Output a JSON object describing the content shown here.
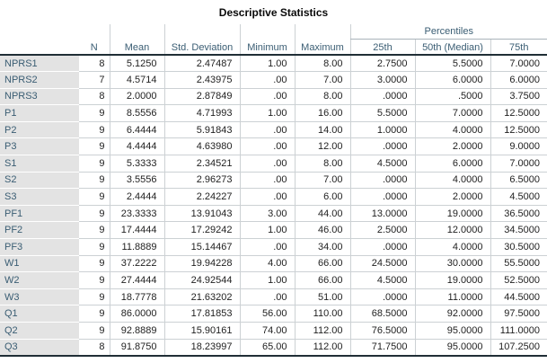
{
  "chart_data": {
    "type": "table",
    "title": "Descriptive Statistics",
    "column_groups": [
      {
        "label": "Percentiles",
        "spans_columns": [
          "25th",
          "50th (Median)",
          "75th"
        ]
      }
    ],
    "columns": [
      "N",
      "Mean",
      "Std. Deviation",
      "Minimum",
      "Maximum",
      "25th",
      "50th (Median)",
      "75th"
    ],
    "rows": [
      {
        "label": "NPRS1",
        "values": [
          "8",
          "5.1250",
          "2.47487",
          "1.00",
          "8.00",
          "2.7500",
          "5.5000",
          "7.0000"
        ]
      },
      {
        "label": "NPRS2",
        "values": [
          "7",
          "4.5714",
          "2.43975",
          ".00",
          "7.00",
          "3.0000",
          "6.0000",
          "6.0000"
        ]
      },
      {
        "label": "NPRS3",
        "values": [
          "8",
          "2.0000",
          "2.87849",
          ".00",
          "8.00",
          ".0000",
          ".5000",
          "3.7500"
        ]
      },
      {
        "label": "P1",
        "values": [
          "9",
          "8.5556",
          "4.71993",
          "1.00",
          "16.00",
          "5.5000",
          "7.0000",
          "12.5000"
        ]
      },
      {
        "label": "P2",
        "values": [
          "9",
          "6.4444",
          "5.91843",
          ".00",
          "14.00",
          "1.0000",
          "4.0000",
          "12.5000"
        ]
      },
      {
        "label": "P3",
        "values": [
          "9",
          "4.4444",
          "4.63980",
          ".00",
          "12.00",
          ".0000",
          "2.0000",
          "9.0000"
        ]
      },
      {
        "label": "S1",
        "values": [
          "9",
          "5.3333",
          "2.34521",
          ".00",
          "8.00",
          "4.5000",
          "6.0000",
          "7.0000"
        ]
      },
      {
        "label": "S2",
        "values": [
          "9",
          "3.5556",
          "2.96273",
          ".00",
          "7.00",
          ".0000",
          "4.0000",
          "6.5000"
        ]
      },
      {
        "label": "S3",
        "values": [
          "9",
          "2.4444",
          "2.24227",
          ".00",
          "6.00",
          ".0000",
          "2.0000",
          "4.5000"
        ]
      },
      {
        "label": "PF1",
        "values": [
          "9",
          "23.3333",
          "13.91043",
          "3.00",
          "44.00",
          "13.0000",
          "19.0000",
          "36.5000"
        ]
      },
      {
        "label": "PF2",
        "values": [
          "9",
          "17.4444",
          "17.29242",
          "1.00",
          "46.00",
          "2.5000",
          "12.0000",
          "34.5000"
        ]
      },
      {
        "label": "PF3",
        "values": [
          "9",
          "11.8889",
          "15.14467",
          ".00",
          "34.00",
          ".0000",
          "4.0000",
          "30.5000"
        ]
      },
      {
        "label": "W1",
        "values": [
          "9",
          "37.2222",
          "19.94228",
          "4.00",
          "66.00",
          "24.5000",
          "30.0000",
          "55.5000"
        ]
      },
      {
        "label": "W2",
        "values": [
          "9",
          "27.4444",
          "24.92544",
          "1.00",
          "66.00",
          "4.5000",
          "19.0000",
          "52.5000"
        ]
      },
      {
        "label": "W3",
        "values": [
          "9",
          "18.7778",
          "21.63202",
          ".00",
          "51.00",
          ".0000",
          "11.0000",
          "44.5000"
        ]
      },
      {
        "label": "Q1",
        "values": [
          "9",
          "86.0000",
          "17.81853",
          "56.00",
          "110.00",
          "68.5000",
          "92.0000",
          "97.5000"
        ]
      },
      {
        "label": "Q2",
        "values": [
          "9",
          "92.8889",
          "15.90161",
          "74.00",
          "112.00",
          "76.5000",
          "95.0000",
          "111.0000"
        ]
      },
      {
        "label": "Q3",
        "values": [
          "8",
          "91.8750",
          "18.23997",
          "65.00",
          "112.00",
          "71.7500",
          "95.0000",
          "107.2500"
        ]
      }
    ]
  },
  "colors": {
    "header_text": "#3a5d73",
    "data_text": "#1f1f1f",
    "label_bg": "#e3e3e3",
    "grid_line": "#ccd1d4",
    "heavy_line": "#202e36",
    "pct_underline": "#aab4ba"
  }
}
